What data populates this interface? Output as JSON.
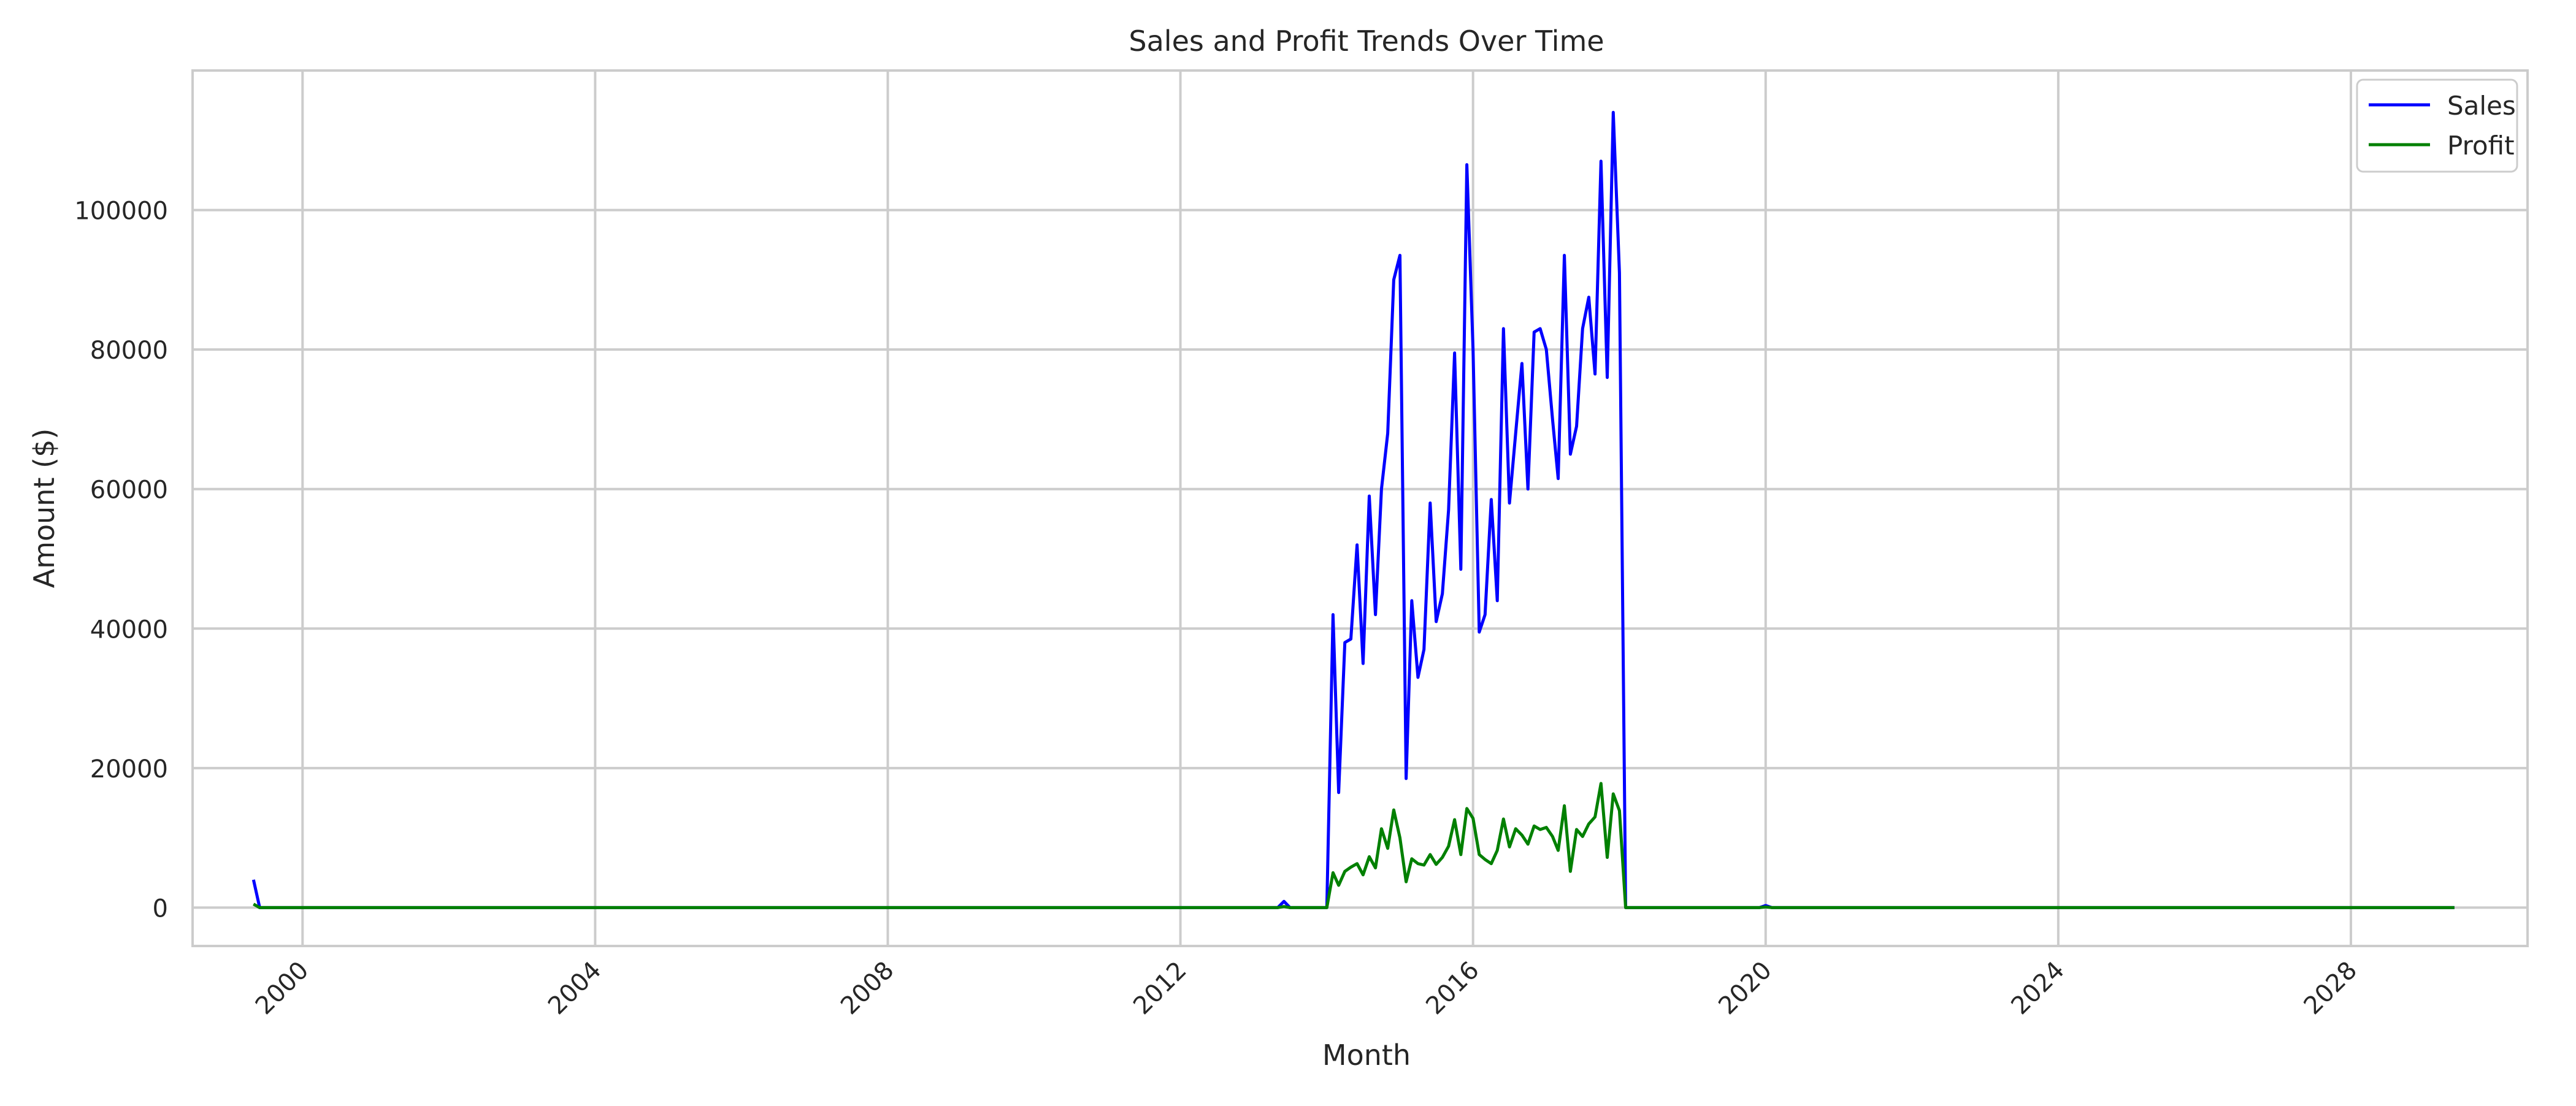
{
  "chart_data": {
    "type": "line",
    "title": "Sales and Profit Trends Over Time",
    "xlabel": "Month",
    "ylabel": "Amount ($)",
    "x_axis": "date",
    "xlim": [
      "1998-07-01",
      "2030-06-01"
    ],
    "ylim": [
      -5500,
      120000
    ],
    "x_ticks": [
      "2000-01-01",
      "2004-01-01",
      "2008-01-01",
      "2012-01-01",
      "2016-01-01",
      "2020-01-01",
      "2024-01-01",
      "2028-01-01"
    ],
    "x_tick_labels": [
      "2000",
      "2004",
      "2008",
      "2012",
      "2016",
      "2020",
      "2024",
      "2028"
    ],
    "y_ticks": [
      0,
      20000,
      40000,
      60000,
      80000,
      100000
    ],
    "y_tick_labels": [
      "0",
      "20000",
      "40000",
      "60000",
      "80000",
      "100000"
    ],
    "grid": true,
    "legend_position": "top-right",
    "series": [
      {
        "name": "Sales",
        "color": "#0000ff",
        "points": [
          [
            "1999-05-01",
            4000
          ],
          [
            "1999-06-01",
            0
          ],
          [
            "2013-05-01",
            0
          ],
          [
            "2013-06-01",
            900
          ],
          [
            "2013-07-01",
            0
          ],
          [
            "2014-01-01",
            0
          ],
          [
            "2014-02-01",
            42000
          ],
          [
            "2014-03-01",
            16500
          ],
          [
            "2014-04-01",
            38000
          ],
          [
            "2014-05-01",
            38500
          ],
          [
            "2014-06-01",
            52000
          ],
          [
            "2014-07-01",
            35000
          ],
          [
            "2014-08-01",
            59000
          ],
          [
            "2014-09-01",
            42000
          ],
          [
            "2014-10-01",
            60000
          ],
          [
            "2014-11-01",
            68000
          ],
          [
            "2014-12-01",
            90000
          ],
          [
            "2015-01-01",
            93500
          ],
          [
            "2015-02-01",
            18500
          ],
          [
            "2015-03-01",
            44000
          ],
          [
            "2015-04-01",
            33000
          ],
          [
            "2015-05-01",
            37000
          ],
          [
            "2015-06-01",
            58000
          ],
          [
            "2015-07-01",
            41000
          ],
          [
            "2015-08-01",
            45000
          ],
          [
            "2015-09-01",
            57000
          ],
          [
            "2015-10-01",
            79500
          ],
          [
            "2015-11-01",
            48500
          ],
          [
            "2015-12-01",
            106500
          ],
          [
            "2016-01-01",
            80000
          ],
          [
            "2016-02-01",
            39500
          ],
          [
            "2016-03-01",
            42000
          ],
          [
            "2016-04-01",
            58500
          ],
          [
            "2016-05-01",
            44000
          ],
          [
            "2016-06-01",
            83000
          ],
          [
            "2016-07-01",
            58000
          ],
          [
            "2016-08-01",
            68000
          ],
          [
            "2016-09-01",
            78000
          ],
          [
            "2016-10-01",
            60000
          ],
          [
            "2016-11-01",
            82500
          ],
          [
            "2016-12-01",
            83000
          ],
          [
            "2017-01-01",
            80000
          ],
          [
            "2017-02-01",
            70000
          ],
          [
            "2017-03-01",
            61500
          ],
          [
            "2017-04-01",
            93500
          ],
          [
            "2017-05-01",
            65000
          ],
          [
            "2017-06-01",
            69000
          ],
          [
            "2017-07-01",
            83000
          ],
          [
            "2017-08-01",
            87500
          ],
          [
            "2017-09-01",
            76500
          ],
          [
            "2017-10-01",
            107000
          ],
          [
            "2017-11-01",
            76000
          ],
          [
            "2017-12-01",
            114000
          ],
          [
            "2018-01-01",
            91000
          ],
          [
            "2018-02-01",
            0
          ],
          [
            "2019-12-01",
            0
          ],
          [
            "2020-01-01",
            300
          ],
          [
            "2020-02-01",
            0
          ],
          [
            "2029-06-01",
            0
          ]
        ]
      },
      {
        "name": "Profit",
        "color": "#008000",
        "points": [
          [
            "1999-05-01",
            500
          ],
          [
            "1999-06-01",
            0
          ],
          [
            "2013-05-01",
            0
          ],
          [
            "2013-06-01",
            150
          ],
          [
            "2013-07-01",
            0
          ],
          [
            "2014-01-01",
            0
          ],
          [
            "2014-02-01",
            5000
          ],
          [
            "2014-03-01",
            3200
          ],
          [
            "2014-04-01",
            5200
          ],
          [
            "2014-05-01",
            5800
          ],
          [
            "2014-06-01",
            6300
          ],
          [
            "2014-07-01",
            4700
          ],
          [
            "2014-08-01",
            7300
          ],
          [
            "2014-09-01",
            5700
          ],
          [
            "2014-10-01",
            11300
          ],
          [
            "2014-11-01",
            8500
          ],
          [
            "2014-12-01",
            14000
          ],
          [
            "2015-01-01",
            10000
          ],
          [
            "2015-02-01",
            3700
          ],
          [
            "2015-03-01",
            7000
          ],
          [
            "2015-04-01",
            6300
          ],
          [
            "2015-05-01",
            6100
          ],
          [
            "2015-06-01",
            7600
          ],
          [
            "2015-07-01",
            6200
          ],
          [
            "2015-08-01",
            7200
          ],
          [
            "2015-09-01",
            8800
          ],
          [
            "2015-10-01",
            12600
          ],
          [
            "2015-11-01",
            7600
          ],
          [
            "2015-12-01",
            14200
          ],
          [
            "2016-01-01",
            12800
          ],
          [
            "2016-02-01",
            7600
          ],
          [
            "2016-03-01",
            6900
          ],
          [
            "2016-04-01",
            6300
          ],
          [
            "2016-05-01",
            8200
          ],
          [
            "2016-06-01",
            12700
          ],
          [
            "2016-07-01",
            8700
          ],
          [
            "2016-08-01",
            11300
          ],
          [
            "2016-09-01",
            10400
          ],
          [
            "2016-10-01",
            9100
          ],
          [
            "2016-11-01",
            11700
          ],
          [
            "2016-12-01",
            11200
          ],
          [
            "2017-01-01",
            11500
          ],
          [
            "2017-02-01",
            10200
          ],
          [
            "2017-03-01",
            8200
          ],
          [
            "2017-04-01",
            14600
          ],
          [
            "2017-05-01",
            5200
          ],
          [
            "2017-06-01",
            11200
          ],
          [
            "2017-07-01",
            10200
          ],
          [
            "2017-08-01",
            12000
          ],
          [
            "2017-09-01",
            13000
          ],
          [
            "2017-10-01",
            17800
          ],
          [
            "2017-11-01",
            7200
          ],
          [
            "2017-12-01",
            16300
          ],
          [
            "2018-01-01",
            13900
          ],
          [
            "2018-02-01",
            0
          ],
          [
            "2019-12-01",
            0
          ],
          [
            "2020-01-01",
            100
          ],
          [
            "2020-02-01",
            0
          ],
          [
            "2029-06-01",
            0
          ]
        ]
      }
    ]
  }
}
